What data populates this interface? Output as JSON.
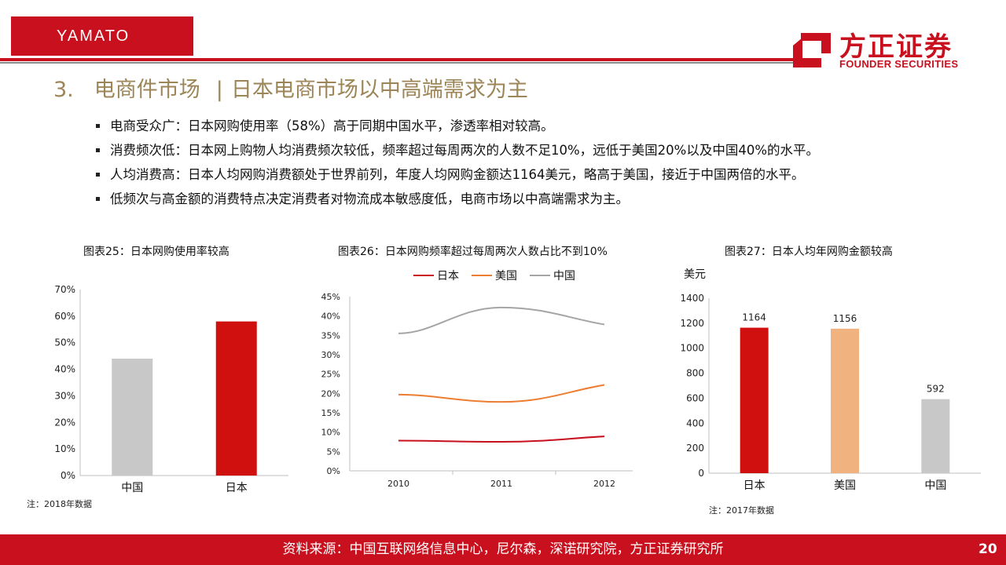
{
  "header": {
    "tag": "YAMATO",
    "logo_cn": "方正证券",
    "logo_en": "FOUNDER SECURITIES",
    "section_num": "3.",
    "section_title": "电商件市场",
    "separator": "|",
    "subtitle": "日本电商市场以中高端需求为主",
    "brand_color": "#c8101e"
  },
  "bullets": [
    "电商受众广：日本网购使用率（58%）高于同期中国水平，渗透率相对较高。",
    "消费频次低：日本网上购物人均消费频次较低，频率超过每周两次的人数不足10%，远低于美国20%以及中国40%的水平。",
    "人均消费高：日本人均网购消费额处于世界前列，年度人均网购金额达1164美元，略高于美国，接近于中国两倍的水平。",
    "低频次与高金额的消费特点决定消费者对物流成本敏感度低，电商市场以中高端需求为主。"
  ],
  "chart_data": [
    {
      "type": "bar",
      "title": "图表25：日本网购使用率较高",
      "categories": [
        "中国",
        "日本"
      ],
      "values": [
        44,
        58
      ],
      "colors": [
        "#c8c8c8",
        "#d0100e"
      ],
      "ylim": [
        0,
        70
      ],
      "yticks": [
        "0%",
        "10%",
        "20%",
        "30%",
        "40%",
        "50%",
        "60%",
        "70%"
      ],
      "note": "注：2018年数据"
    },
    {
      "type": "line",
      "title": "图表26：日本网购频率超过每周两次人数占比不到10%",
      "x": [
        "2010",
        "2011",
        "2012"
      ],
      "series": [
        {
          "name": "日本",
          "values": [
            7.8,
            7.5,
            8.9
          ],
          "color": "#c8101e"
        },
        {
          "name": "美国",
          "values": [
            19.7,
            17.8,
            22.2
          ],
          "color": "#ed7d31"
        },
        {
          "name": "中国",
          "values": [
            35.5,
            42.2,
            37.8
          ],
          "color": "#a5a5a5"
        }
      ],
      "ylim": [
        0,
        45
      ],
      "yticks": [
        "0%",
        "5%",
        "10%",
        "15%",
        "20%",
        "25%",
        "30%",
        "35%",
        "40%",
        "45%"
      ],
      "legend": "top"
    },
    {
      "type": "bar",
      "title": "图表27：日本人均年网购金额较高",
      "ylabel": "美元",
      "categories": [
        "日本",
        "美国",
        "中国"
      ],
      "values": [
        1164,
        1156,
        592
      ],
      "colors": [
        "#d0100e",
        "#f0b380",
        "#c8c8c8"
      ],
      "ylim": [
        0,
        1400
      ],
      "yticks": [
        "0",
        "200",
        "400",
        "600",
        "800",
        "1000",
        "1200",
        "1400"
      ],
      "data_labels": [
        "1164",
        "1156",
        "592"
      ],
      "note": "注：2017年数据"
    }
  ],
  "footer": {
    "source": "资料来源：中国互联网络信息中心，尼尔森，深诺研究院，方正证券研究所",
    "page": "20"
  }
}
